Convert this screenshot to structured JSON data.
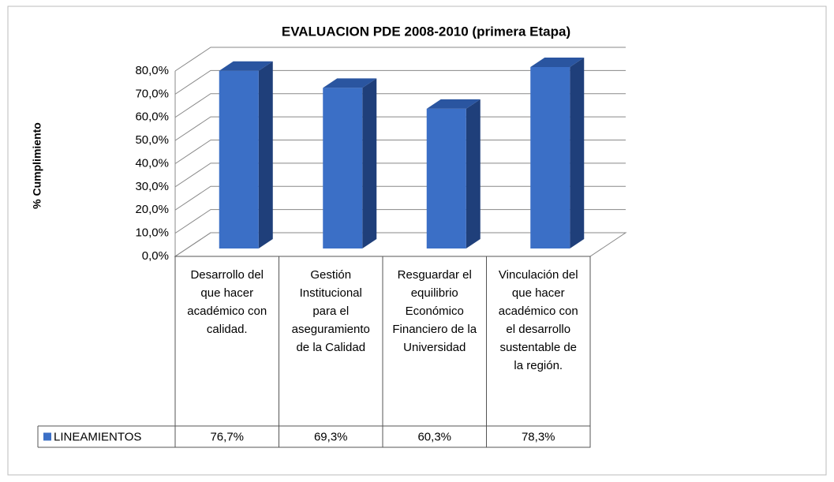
{
  "chart_data": {
    "type": "bar3d",
    "title": "EVALUACION PDE 2008-2010 (primera Etapa)",
    "y_axis_label": "% Cumplimiento",
    "categories": [
      "Desarrollo del que hacer académico con calidad.",
      "Gestión Institucional para el aseguramiento de la Calidad",
      "Resguardar el equilibrio Económico Financiero de la Universidad",
      "Vinculación del que hacer académico con el desarrollo sustentable de la región."
    ],
    "series": [
      {
        "name": "LINEAMIENTOS",
        "color": "#3b6fc6",
        "values": [
          76.7,
          69.3,
          60.3,
          78.3
        ],
        "value_labels": [
          "76,7%",
          "69,3%",
          "60,3%",
          "78,3%"
        ]
      }
    ],
    "ylim": [
      0,
      80
    ],
    "yticks": [
      {
        "value": 0,
        "label": "0,0%"
      },
      {
        "value": 10,
        "label": "10,0%"
      },
      {
        "value": 20,
        "label": "20,0%"
      },
      {
        "value": 30,
        "label": "30,0%"
      },
      {
        "value": 40,
        "label": "40,0%"
      },
      {
        "value": 50,
        "label": "50,0%"
      },
      {
        "value": 60,
        "label": "60,0%"
      },
      {
        "value": 70,
        "label": "70,0%"
      },
      {
        "value": 80,
        "label": "80,0%"
      }
    ],
    "grid": true,
    "data_table": true
  }
}
